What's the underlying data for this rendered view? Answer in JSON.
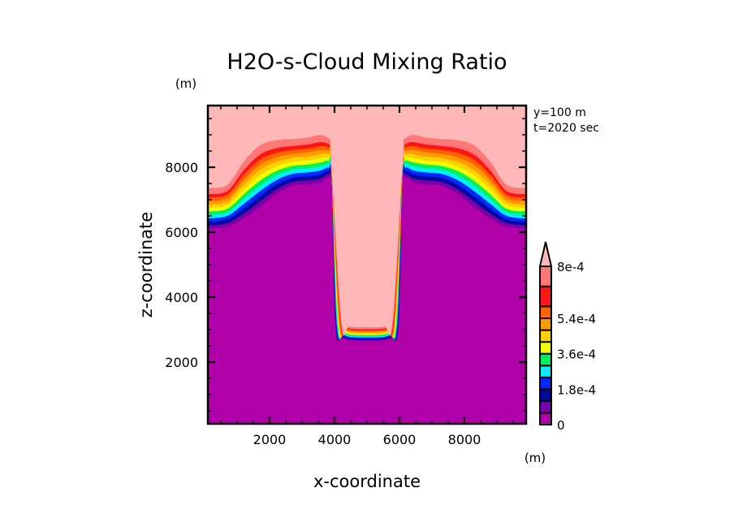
{
  "chart_data": {
    "type": "contour",
    "title": "H2O-s-Cloud Mixing Ratio",
    "xlabel": "x-coordinate",
    "ylabel": "z-coordinate",
    "x_unit": "(m)",
    "y_unit": "(m)",
    "annotations": [
      "y=100 m",
      "t=2020 sec"
    ],
    "xlim": [
      100,
      9900
    ],
    "ylim": [
      100,
      9900
    ],
    "x_ticks": [
      2000,
      4000,
      6000,
      8000
    ],
    "y_ticks": [
      2000,
      4000,
      6000,
      8000
    ],
    "x_tick_labels": [
      "2000",
      "4000",
      "6000",
      "8000"
    ],
    "y_tick_labels": [
      "2000",
      "4000",
      "6000",
      "8000"
    ],
    "minor_tick_step": 500,
    "grid": false,
    "symmetry_axis_x": 5000,
    "colorbar": {
      "placement": "right",
      "levels": [
        0,
        6e-05,
        0.00012,
        0.00018,
        0.00024,
        0.0003,
        0.00036,
        0.00042,
        0.00048,
        0.00054,
        0.0006,
        0.0007,
        0.0008
      ],
      "labels": [
        {
          "value": 0,
          "text": "0"
        },
        {
          "value": 0.00018,
          "text": "1.8e-4"
        },
        {
          "value": 0.00036,
          "text": "3.6e-4"
        },
        {
          "value": 0.00054,
          "text": "5.4e-4"
        },
        {
          "value": 0.0008,
          "text": "8e-4"
        }
      ],
      "colors": [
        "#b000a8",
        "#7a00a8",
        "#000aa0",
        "#0028ff",
        "#00f0ff",
        "#00f060",
        "#f0ff00",
        "#ffd000",
        "#ff9c00",
        "#ff6400",
        "#ff1414",
        "#ff7878"
      ],
      "extend_color": "#ffb8b8"
    },
    "contour_outer_boundary_left": [
      [
        100,
        7275
      ],
      [
        700,
        7375
      ],
      [
        1200,
        8050
      ],
      [
        1700,
        8550
      ],
      [
        2200,
        8725
      ],
      [
        2700,
        8775
      ],
      [
        3200,
        8825
      ],
      [
        3575,
        8900
      ],
      [
        3825,
        8800
      ],
      [
        3875,
        8550
      ],
      [
        4200,
        3300
      ],
      [
        4450,
        3075
      ],
      [
        5000,
        3050
      ]
    ],
    "contour_inner_boundary_left": [
      [
        100,
        6100
      ],
      [
        700,
        6175
      ],
      [
        1200,
        6425
      ],
      [
        1700,
        6775
      ],
      [
        2200,
        7175
      ],
      [
        2700,
        7425
      ],
      [
        3200,
        7475
      ],
      [
        3575,
        7525
      ],
      [
        3800,
        7675
      ],
      [
        3925,
        7300
      ],
      [
        4025,
        3100
      ],
      [
        4275,
        2725
      ],
      [
        5000,
        2650
      ]
    ]
  }
}
